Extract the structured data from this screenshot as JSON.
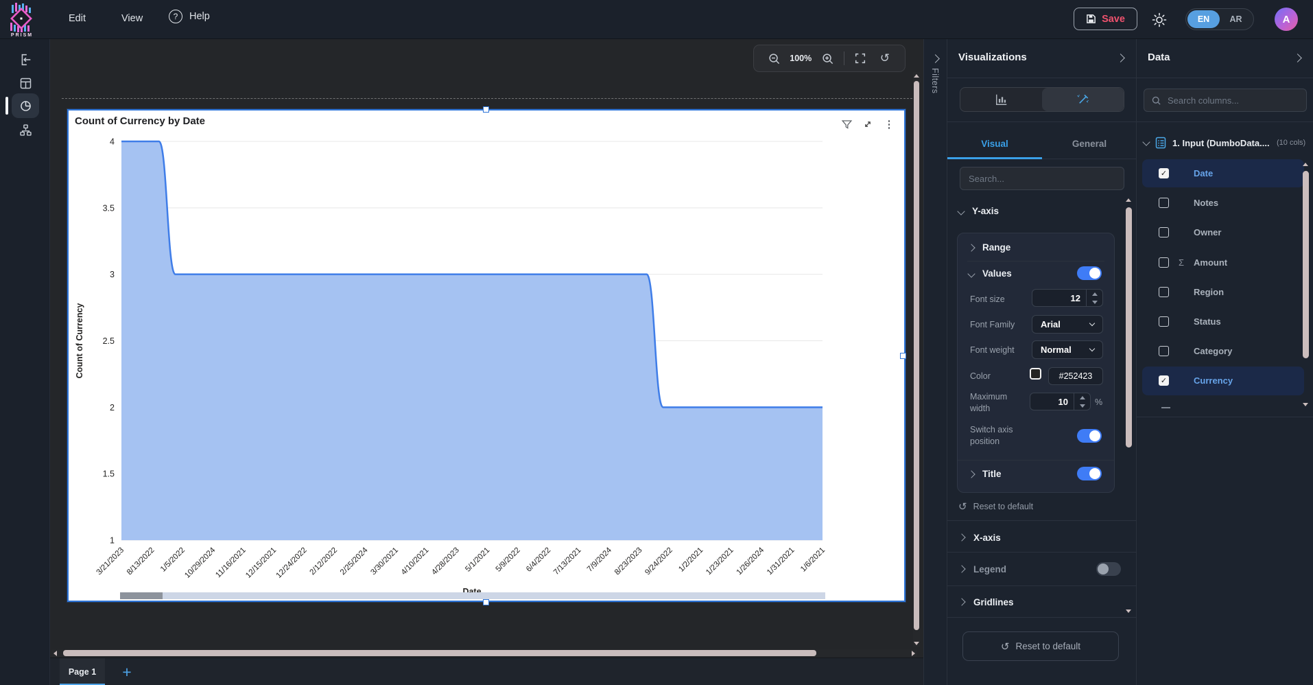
{
  "topbar": {
    "logo_text": "PRISM",
    "menus": [
      "Edit",
      "View",
      "Help"
    ],
    "save_label": "Save",
    "languages": {
      "en": "EN",
      "ar": "AR"
    },
    "avatar_initial": "A"
  },
  "left_rail": {
    "icons": [
      "exit-icon",
      "layout-icon",
      "pie-chart-icon",
      "flowchart-icon"
    ],
    "active_item": "pie-chart"
  },
  "canvas": {
    "zoom_level": "100%",
    "filters_label": "Filters",
    "pages": {
      "active_tab": "Page 1",
      "add_label": "+"
    }
  },
  "widget": {
    "title": "Count of Currency by Date",
    "icons": [
      "filter-funnel-icon",
      "expand-icon",
      "kebab-menu-icon"
    ]
  },
  "chart_data": {
    "type": "area",
    "title": "Count of Currency by Date",
    "xlabel": "Date",
    "ylabel": "Count of Currency",
    "categories": [
      "3/21/2023",
      "8/13/2022",
      "1/5/2022",
      "10/29/2024",
      "11/16/2021",
      "12/15/2021",
      "12/24/2022",
      "2/12/2022",
      "2/25/2024",
      "3/30/2021",
      "4/10/2021",
      "4/28/2023",
      "5/1/2021",
      "5/9/2022",
      "6/4/2022",
      "7/13/2021",
      "7/9/2024",
      "8/23/2023",
      "9/24/2022",
      "1/2/2021",
      "1/23/2021",
      "1/26/2024",
      "1/31/2021",
      "1/6/2021"
    ],
    "values": [
      4,
      4,
      3,
      3,
      3,
      3,
      3,
      3,
      3,
      3,
      3,
      3,
      3,
      3,
      3,
      3,
      3,
      3,
      2,
      2,
      2,
      2,
      2,
      2
    ],
    "ylim": [
      1,
      4
    ],
    "yticks": [
      1,
      1.5,
      2,
      2.5,
      3,
      3.5,
      4
    ],
    "grid": true,
    "legend_position": "none",
    "line_color": "#3f7de8",
    "fill_color": "#a5c2f2",
    "label_color": "#252423"
  },
  "viz_panel": {
    "title": "Visualizations",
    "tabs": {
      "visual": "Visual",
      "general": "General"
    },
    "search_placeholder": "Search...",
    "y_axis": {
      "label": "Y-axis",
      "range_label": "Range",
      "values_label": "Values",
      "values_on": true,
      "settings": {
        "font_size": {
          "label": "Font size",
          "value": "12"
        },
        "font_family": {
          "label": "Font Family",
          "value": "Arial"
        },
        "font_weight": {
          "label": "Font weight",
          "value": "Normal"
        },
        "color": {
          "label": "Color",
          "value": "#252423"
        },
        "max_width": {
          "label": "Maximum width",
          "value": "10",
          "suffix": "%"
        },
        "switch_axis": {
          "label": "Switch axis position",
          "on": true
        }
      },
      "title_label": "Title",
      "title_on": true,
      "reset_label": "Reset to default"
    },
    "x_axis_label": "X-axis",
    "legend_label": "Legend",
    "legend_on": false,
    "gridlines_label": "Gridlines",
    "reset_button_label": "Reset to default"
  },
  "data_panel": {
    "title": "Data",
    "search_placeholder": "Search columns...",
    "table": {
      "name": "1. Input (DumboData....",
      "cols_badge": "(10 cols)"
    },
    "columns": [
      {
        "label": "Date",
        "checked": true,
        "selected": true
      },
      {
        "label": "Notes",
        "checked": false
      },
      {
        "label": "Owner",
        "checked": false
      },
      {
        "label": "Amount",
        "checked": false,
        "aggregate": true
      },
      {
        "label": "Region",
        "checked": false
      },
      {
        "label": "Status",
        "checked": false
      },
      {
        "label": "Category",
        "checked": false
      },
      {
        "label": "Currency",
        "checked": true,
        "selected": true
      }
    ]
  },
  "colors": {
    "accent_blue": "#3aa0e8",
    "toggle_on_blue": "#3f7cf6",
    "save_pink": "#f0526e",
    "selection_border": "#2e75d8"
  }
}
